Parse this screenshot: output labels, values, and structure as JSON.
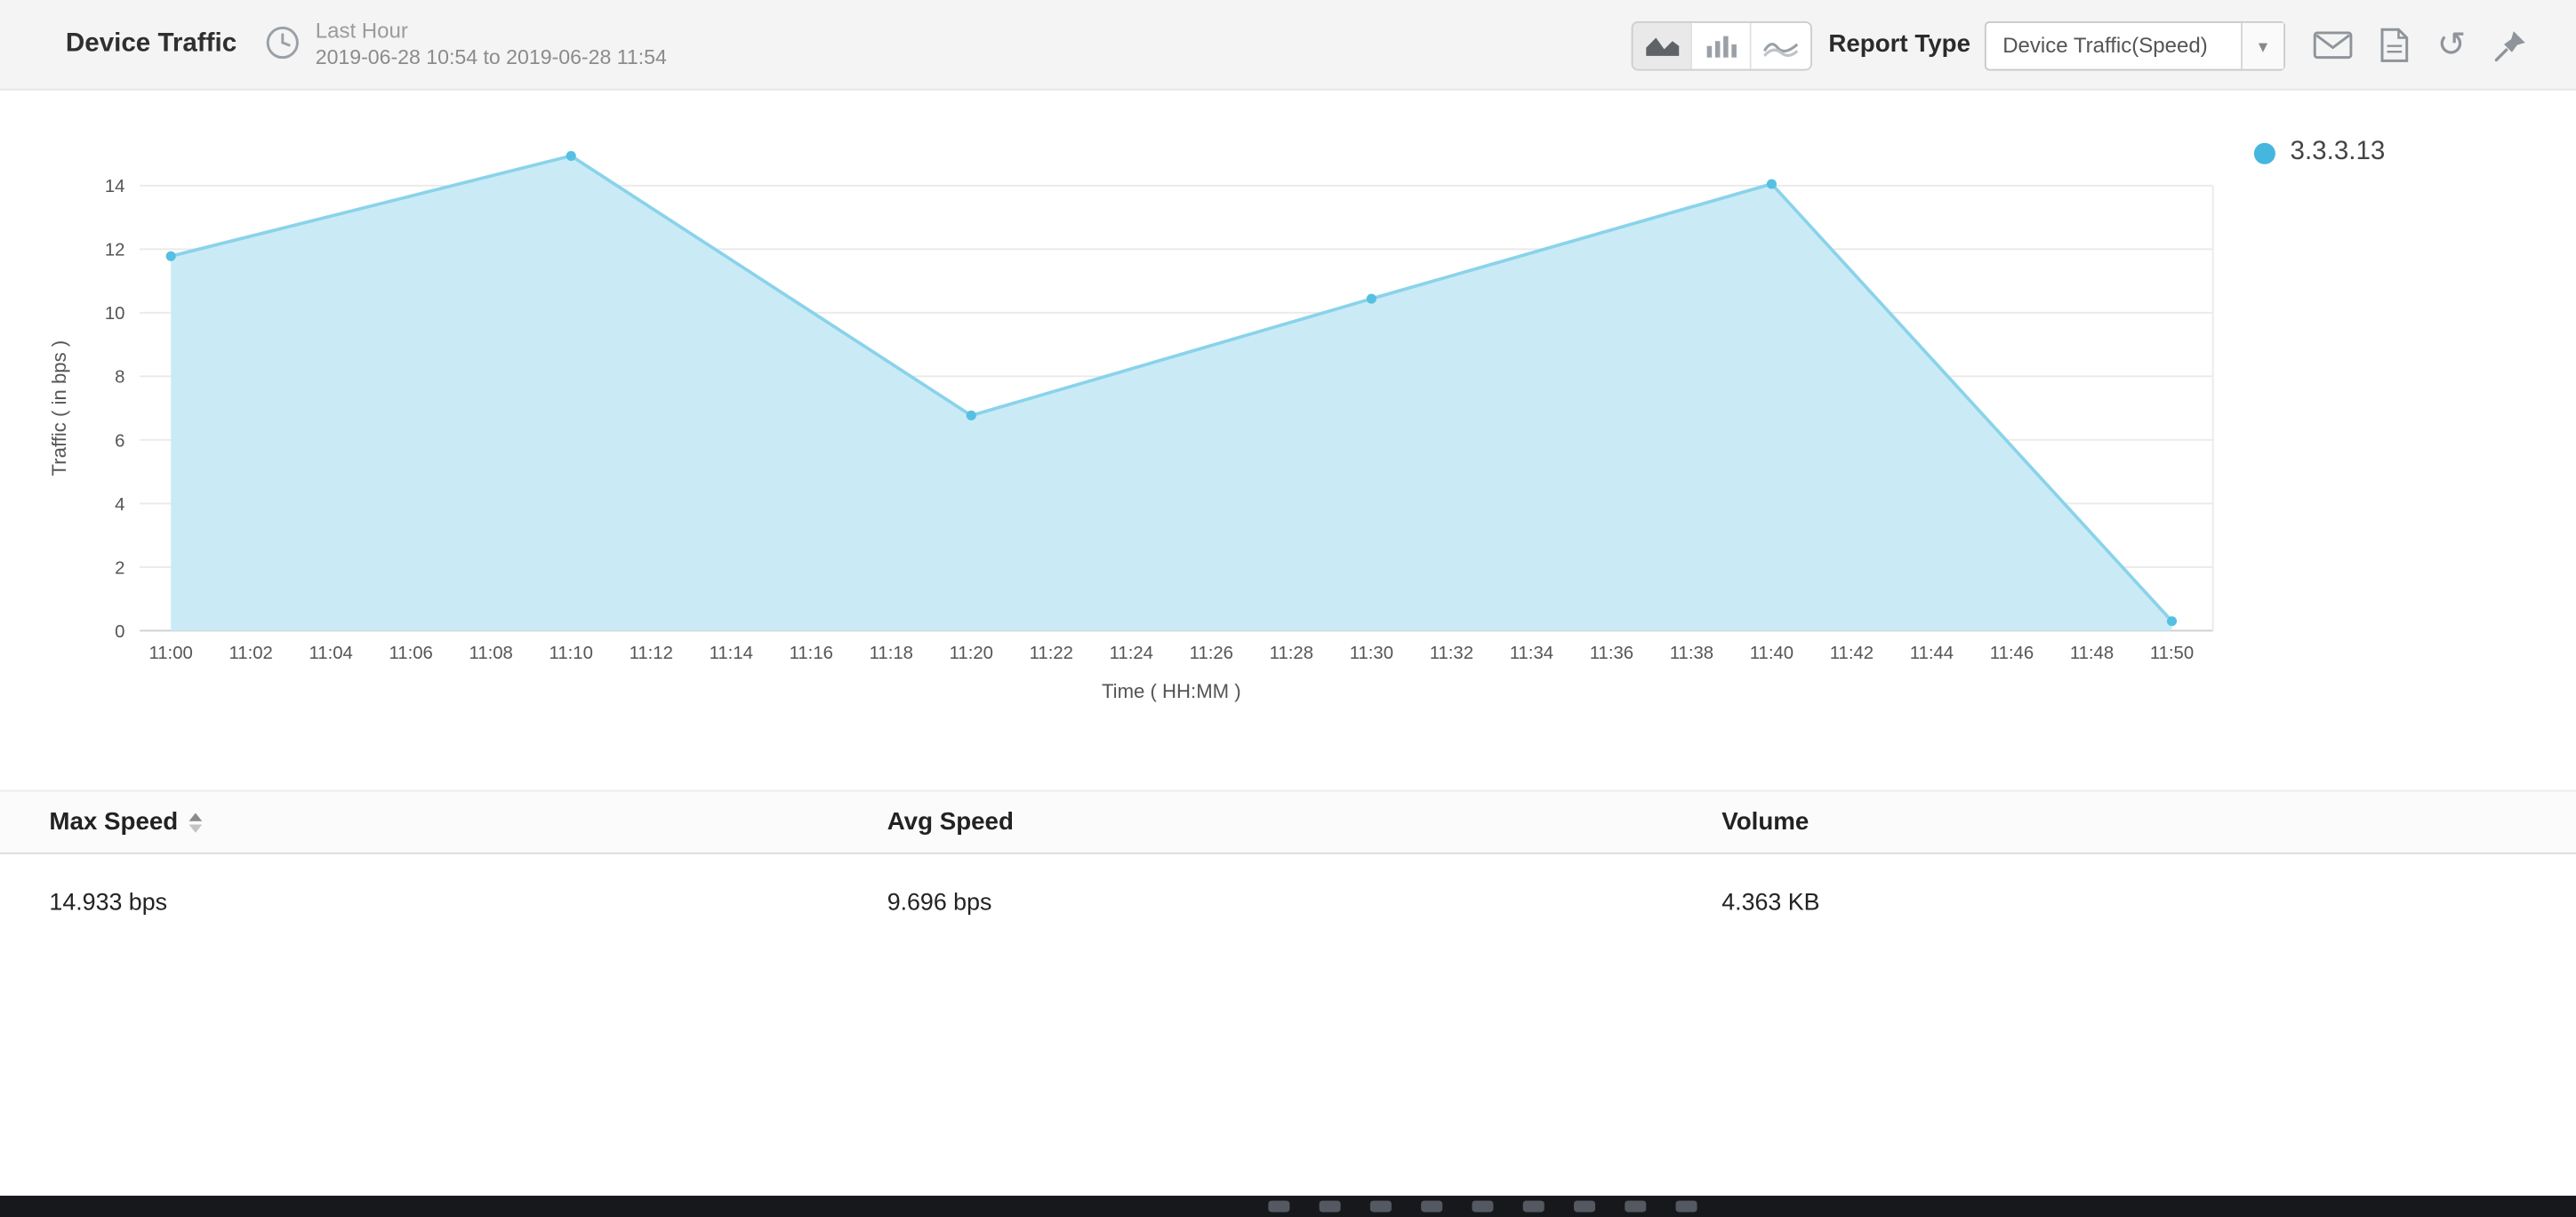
{
  "colors": {
    "header_bg": "#f4f4f4",
    "area_fill": "#c7eaf6",
    "line": "#8ad3ea",
    "marker": "#55c0e2",
    "legend_dot": "#45b6de"
  },
  "header": {
    "title": "Device Traffic",
    "period_label": "Last Hour",
    "period_range": "2019-06-28 10:54 to 2019-06-28 11:54",
    "chart_type_switcher": [
      {
        "icon": "area-chart-icon",
        "active": true
      },
      {
        "icon": "bar-chart-icon",
        "active": false
      },
      {
        "icon": "line-chart-icon",
        "active": false
      }
    ],
    "report_type_label": "Report Type",
    "report_type_value": "Device Traffic(Speed)",
    "dropdown_caret": "▾",
    "actions": [
      "email-icon",
      "pdf-export-icon",
      "refresh-icon",
      "pin-icon"
    ],
    "refresh_glyph": "↺"
  },
  "chart_data": {
    "type": "area",
    "title": "",
    "xlabel": "Time ( HH:MM )",
    "ylabel": "Traffic ( in bps )",
    "ylim": [
      0,
      15
    ],
    "grid": true,
    "legend_position": "right",
    "y_ticks": [
      0,
      2,
      4,
      6,
      8,
      10,
      12,
      14
    ],
    "x_tick_labels": [
      "11:00",
      "11:02",
      "11:04",
      "11:06",
      "11:08",
      "11:10",
      "11:12",
      "11:14",
      "11:16",
      "11:18",
      "11:20",
      "11:22",
      "11:24",
      "11:26",
      "11:28",
      "11:30",
      "11:32",
      "11:34",
      "11:36",
      "11:38",
      "11:40",
      "11:42",
      "11:44",
      "11:46",
      "11:48",
      "11:50"
    ],
    "series": [
      {
        "name": "3.3.3.13",
        "color": "#8ad3ea",
        "fill": "#c7eaf6",
        "marker": "#55c0e2",
        "legend_color": "#45b6de",
        "x": [
          "11:00",
          "11:10",
          "11:20",
          "11:30",
          "11:40",
          "11:50"
        ],
        "values": [
          11.78,
          14.933,
          6.77,
          10.44,
          14.05,
          0.3
        ]
      }
    ]
  },
  "table": {
    "columns": [
      {
        "label": "Max Speed",
        "sorted": true
      },
      {
        "label": "Avg Speed",
        "sorted": false
      },
      {
        "label": "Volume",
        "sorted": false
      }
    ],
    "rows": [
      [
        "14.933 bps",
        "9.696 bps",
        "4.363 KB"
      ]
    ]
  }
}
